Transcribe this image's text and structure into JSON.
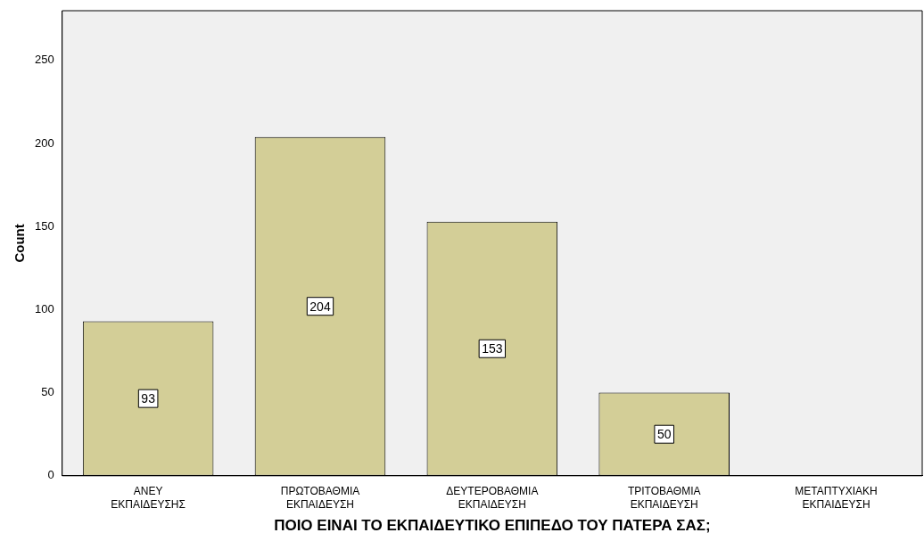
{
  "chart_data": {
    "type": "bar",
    "xlabel": "ΠΟΙΟ ΕΙΝΑΙ ΤΟ ΕΚΠΑΙΔΕΥΤΙΚΟ ΕΠΙΠΕΔΟ ΤΟΥ ΠΑΤΕΡΑ ΣΑΣ;",
    "ylabel": "Count",
    "categories": [
      "ΑΝΕΥ ΕΚΠΑΙΔΕΥΣΗΣ",
      "ΠΡΩΤΟΒΑΘΜΙΑ ΕΚΠΑΙΔΕΥΣΗ",
      "ΔΕΥΤΕΡΟΒΑΘΜΙΑ ΕΚΠΑΙΔΕΥΣΗ",
      "ΤΡΙΤΟΒΑΘΜΙΑ ΕΚΠΑΙΔΕΥΣΗ",
      "ΜΕΤΑΠΤΥΧΙΑΚΗ ΕΚΠΑΙΔΕΥΣΗ"
    ],
    "values": [
      93,
      204,
      153,
      50,
      0
    ],
    "value_labels": [
      "93",
      "204",
      "153",
      "50",
      null
    ],
    "color": "#d3ce97",
    "ylim": [
      0,
      280
    ],
    "yticks": [
      0,
      50,
      100,
      150,
      200,
      250
    ],
    "grid": false,
    "legend": false
  }
}
